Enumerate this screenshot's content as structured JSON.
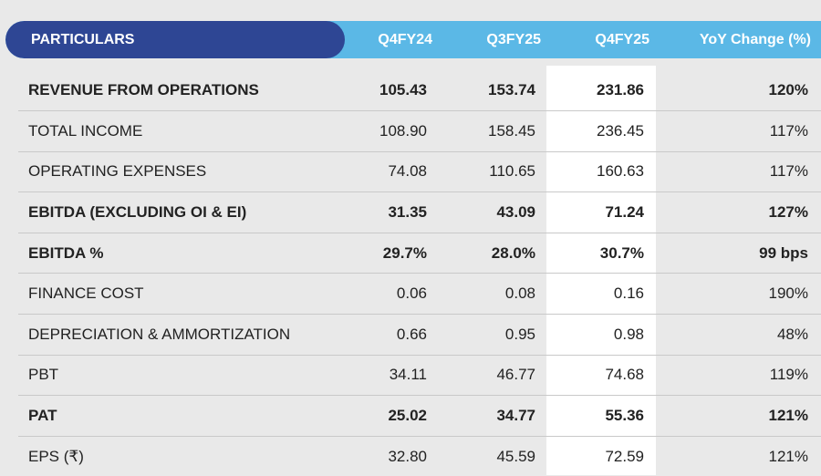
{
  "header": {
    "particulars": "PARTICULARS",
    "q4fy24": "Q4FY24",
    "q3fy25": "Q3FY25",
    "q4fy25": "Q4FY25",
    "yoy": "YoY Change (%)"
  },
  "colors": {
    "header_dark": "#2e4694",
    "header_light": "#5bb8e6",
    "highlight_column": "#ffffff",
    "background": "#e9e9e9"
  },
  "rows": [
    {
      "label": "REVENUE FROM OPERATIONS",
      "q4fy24": "105.43",
      "q3fy25": "153.74",
      "q4fy25": "231.86",
      "yoy": "120%",
      "bold": true
    },
    {
      "label": "TOTAL INCOME",
      "q4fy24": "108.90",
      "q3fy25": "158.45",
      "q4fy25": "236.45",
      "yoy": "117%",
      "bold": false
    },
    {
      "label": "OPERATING EXPENSES",
      "q4fy24": "74.08",
      "q3fy25": "110.65",
      "q4fy25": "160.63",
      "yoy": "117%",
      "bold": false
    },
    {
      "label": "EBITDA (EXCLUDING OI & EI)",
      "q4fy24": "31.35",
      "q3fy25": "43.09",
      "q4fy25": "71.24",
      "yoy": "127%",
      "bold": true
    },
    {
      "label": "EBITDA %",
      "q4fy24": "29.7%",
      "q3fy25": "28.0%",
      "q4fy25": "30.7%",
      "yoy": "99 bps",
      "bold": true
    },
    {
      "label": "FINANCE COST",
      "q4fy24": "0.06",
      "q3fy25": "0.08",
      "q4fy25": "0.16",
      "yoy": "190%",
      "bold": false
    },
    {
      "label": "DEPRECIATION & AMMORTIZATION",
      "q4fy24": "0.66",
      "q3fy25": "0.95",
      "q4fy25": "0.98",
      "yoy": "48%",
      "bold": false
    },
    {
      "label": "PBT",
      "q4fy24": "34.11",
      "q3fy25": "46.77",
      "q4fy25": "74.68",
      "yoy": "119%",
      "bold": false
    },
    {
      "label": "PAT",
      "q4fy24": "25.02",
      "q3fy25": "34.77",
      "q4fy25": "55.36",
      "yoy": "121%",
      "bold": true
    },
    {
      "label": "EPS (₹)",
      "q4fy24": "32.80",
      "q3fy25": "45.59",
      "q4fy25": "72.59",
      "yoy": "121%",
      "bold": false
    }
  ]
}
